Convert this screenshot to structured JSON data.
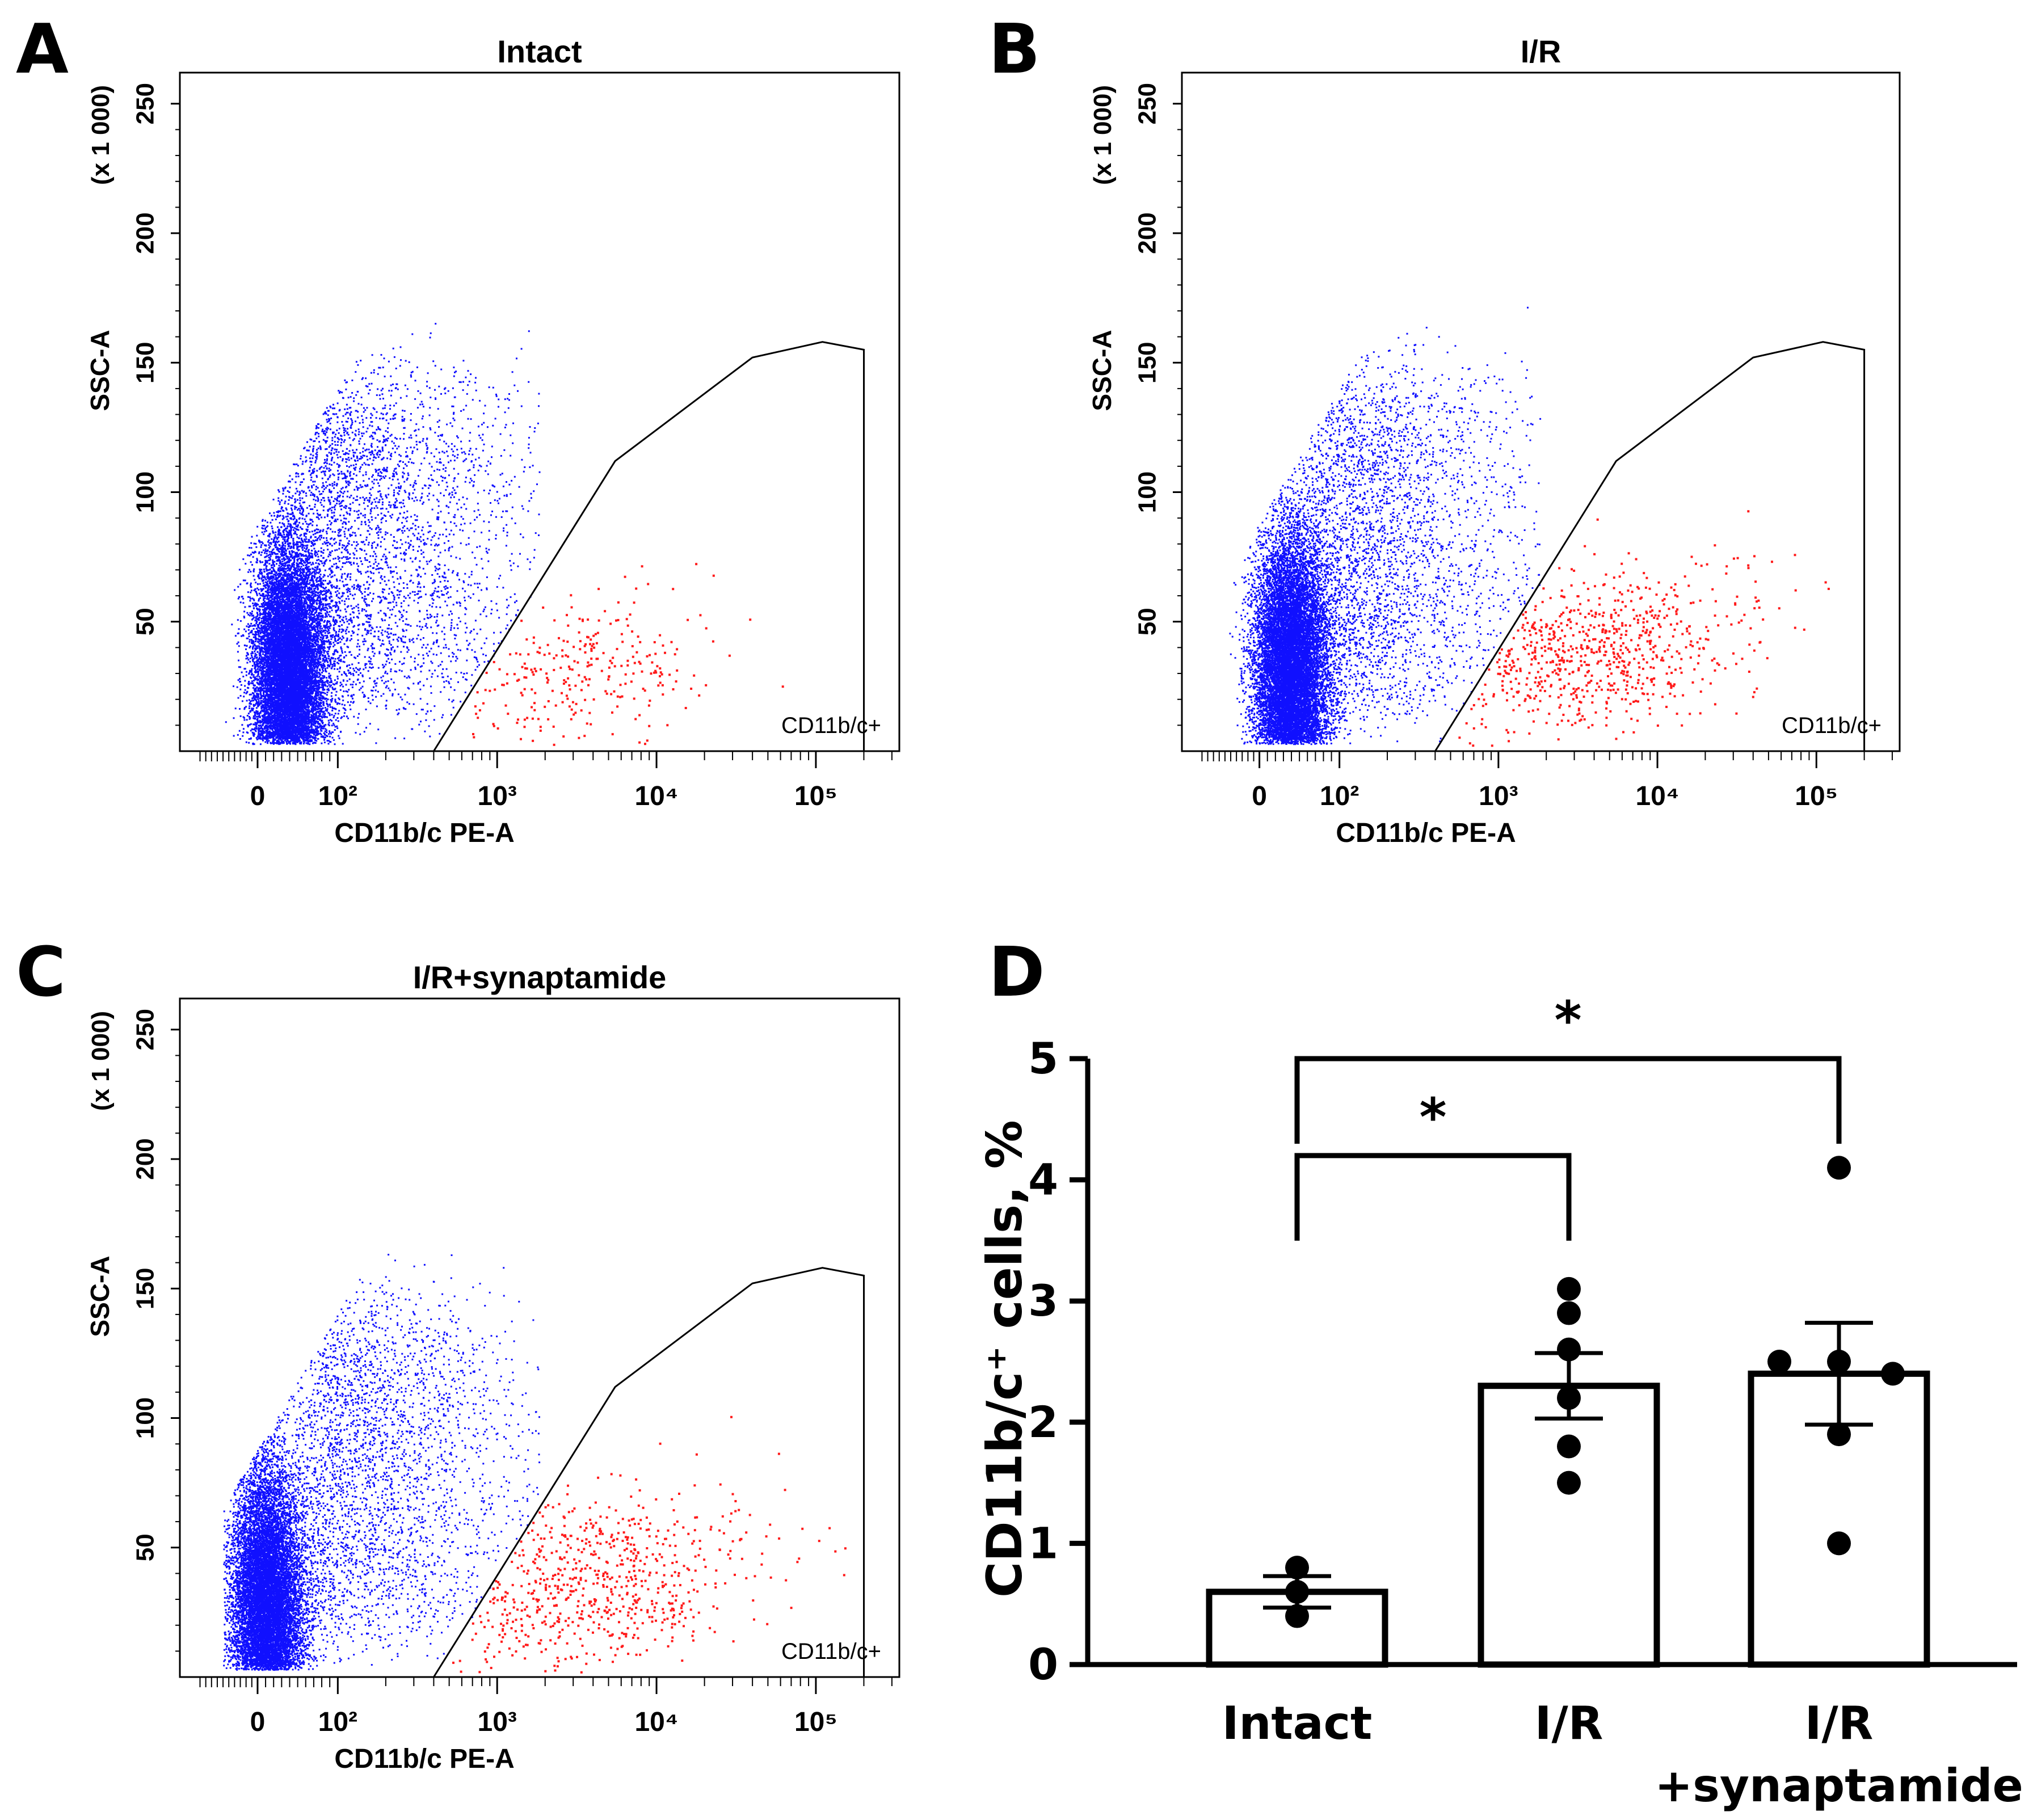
{
  "colors": {
    "population": "#1010ff",
    "gated_population": "#ff1a1a",
    "gate_line": "#000000",
    "axis": "#000000",
    "bar_fill": "#ffffff",
    "background": "#ffffff"
  },
  "chart_data": [
    {
      "panel": "A",
      "type": "scatter",
      "title": "Intact",
      "xlabel": "CD11b/c PE-A",
      "ylabel": "SSC-A",
      "y_multiplier_label": "(x 1 000)",
      "x_scale": "biexponential",
      "x_tick_labels": [
        "0",
        "10²",
        "10³",
        "10⁴",
        "10⁵"
      ],
      "x_tick_values": [
        0,
        100,
        1000,
        10000,
        100000
      ],
      "y_tick_labels": [
        "50",
        "100",
        "150",
        "200",
        "250"
      ],
      "y_tick_values": [
        50,
        100,
        150,
        200,
        250
      ],
      "ylim": [
        0,
        262
      ],
      "gate": {
        "name": "CD11b/c+",
        "vertices": [
          [
            400,
            0
          ],
          [
            5500,
            112
          ],
          [
            40000,
            152
          ],
          [
            110000,
            158
          ],
          [
            200000,
            155
          ],
          [
            200000,
            0
          ]
        ]
      },
      "populations": [
        {
          "name": "ungated",
          "color": "population",
          "approx_events": 16000
        },
        {
          "name": "CD11b/c+",
          "color": "gated_population",
          "approx_events": 280
        }
      ]
    },
    {
      "panel": "B",
      "type": "scatter",
      "title": "I/R",
      "xlabel": "CD11b/c PE-A",
      "ylabel": "SSC-A",
      "y_multiplier_label": "(x 1 000)",
      "x_scale": "biexponential",
      "x_tick_labels": [
        "0",
        "10²",
        "10³",
        "10⁴",
        "10⁵"
      ],
      "x_tick_values": [
        0,
        100,
        1000,
        10000,
        100000
      ],
      "y_tick_labels": [
        "50",
        "100",
        "150",
        "200",
        "250"
      ],
      "y_tick_values": [
        50,
        100,
        150,
        200,
        250
      ],
      "ylim": [
        0,
        262
      ],
      "gate": {
        "name": "CD11b/c+",
        "vertices": [
          [
            400,
            0
          ],
          [
            5500,
            112
          ],
          [
            40000,
            152
          ],
          [
            110000,
            158
          ],
          [
            200000,
            155
          ],
          [
            200000,
            0
          ]
        ]
      },
      "populations": [
        {
          "name": "ungated",
          "color": "population",
          "approx_events": 16000
        },
        {
          "name": "CD11b/c+",
          "color": "gated_population",
          "approx_events": 750
        }
      ]
    },
    {
      "panel": "C",
      "type": "scatter",
      "title": "I/R+synaptamide",
      "xlabel": "CD11b/c PE-A",
      "ylabel": "SSC-A",
      "y_multiplier_label": "(x 1 000)",
      "x_scale": "biexponential",
      "x_tick_labels": [
        "0",
        "10²",
        "10³",
        "10⁴",
        "10⁵"
      ],
      "x_tick_values": [
        0,
        100,
        1000,
        10000,
        100000
      ],
      "y_tick_labels": [
        "50",
        "100",
        "150",
        "200",
        "250"
      ],
      "y_tick_values": [
        50,
        100,
        150,
        200,
        250
      ],
      "ylim": [
        0,
        262
      ],
      "gate": {
        "name": "CD11b/c+",
        "vertices": [
          [
            400,
            0
          ],
          [
            5500,
            112
          ],
          [
            40000,
            152
          ],
          [
            110000,
            158
          ],
          [
            200000,
            155
          ],
          [
            200000,
            0
          ]
        ]
      },
      "populations": [
        {
          "name": "ungated",
          "color": "population",
          "approx_events": 14000
        },
        {
          "name": "CD11b/c+",
          "color": "gated_population",
          "approx_events": 700
        }
      ]
    },
    {
      "panel": "D",
      "type": "bar",
      "title": "",
      "xlabel": "",
      "ylabel": "CD11b/c⁺ cells, %",
      "ylim": [
        0,
        5
      ],
      "y_ticks": [
        0,
        1,
        2,
        3,
        4,
        5
      ],
      "categories": [
        "Intact",
        "I/R",
        "I/R +synaptamide"
      ],
      "category_lines": [
        [
          "Intact"
        ],
        [
          "I/R"
        ],
        [
          "I/R",
          "+synaptamide"
        ]
      ],
      "values": [
        0.6,
        2.3,
        2.4
      ],
      "sem": [
        0.13,
        0.27,
        0.42
      ],
      "points": [
        [
          0.8,
          0.6,
          0.4
        ],
        [
          3.1,
          2.9,
          2.6,
          2.2,
          1.8,
          1.5
        ],
        [
          4.1,
          2.5,
          2.5,
          2.4,
          1.9,
          1.0
        ]
      ],
      "significance": [
        {
          "from": "Intact",
          "to": "I/R",
          "label": "*",
          "bracket_y": 4.2
        },
        {
          "from": "Intact",
          "to": "I/R +synaptamide",
          "label": "*",
          "bracket_y": 5.0
        }
      ]
    }
  ]
}
